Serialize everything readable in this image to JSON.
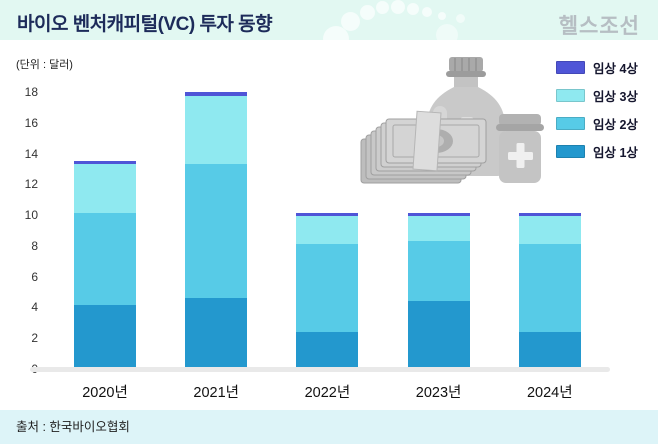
{
  "header": {
    "title": "바이오 벤처캐피털(VC) 투자 동향",
    "logo": "헬스조선"
  },
  "unit_label": "(단위 : 달러)",
  "source": "출처 : 한국바이오협회",
  "colors": {
    "phase1": "#2398ce",
    "phase2": "#57cbe7",
    "phase3": "#8fe9f0",
    "phase4": "#4f55d7",
    "header_band": "#e2f8f2",
    "footer_band": "#ddf4f8",
    "title_text": "#1d2b5a",
    "logo_text": "#b6bec3"
  },
  "chart_data": {
    "type": "bar",
    "stacked": true,
    "title": "바이오 벤처캐피털(VC) 투자 동향",
    "unit": "(단위 : 달러)",
    "categories": [
      "2020년",
      "2021년",
      "2022년",
      "2023년",
      "2024년"
    ],
    "series": [
      {
        "name": "임상 1상",
        "color": "#2398ce",
        "values": [
          4.2,
          4.7,
          2.5,
          4.5,
          2.5
        ]
      },
      {
        "name": "임상 2상",
        "color": "#57cbe7",
        "values": [
          6.0,
          8.7,
          5.7,
          3.9,
          5.7
        ]
      },
      {
        "name": "임상 3상",
        "color": "#8fe9f0",
        "values": [
          3.2,
          4.4,
          1.8,
          1.6,
          1.8
        ]
      },
      {
        "name": "임상 4상",
        "color": "#4f55d7",
        "values": [
          0.2,
          0.3,
          0.2,
          0.2,
          0.2
        ]
      }
    ],
    "totals": [
      13.6,
      18.1,
      10.2,
      10.2,
      10.2
    ],
    "yticks": [
      0,
      2,
      4,
      6,
      8,
      10,
      12,
      14,
      16,
      18
    ],
    "ylim": [
      0,
      18
    ],
    "grid": false,
    "legend_order": [
      "임상 4상",
      "임상 3상",
      "임상 2상",
      "임상 1상"
    ],
    "legend_position": "top-right"
  }
}
